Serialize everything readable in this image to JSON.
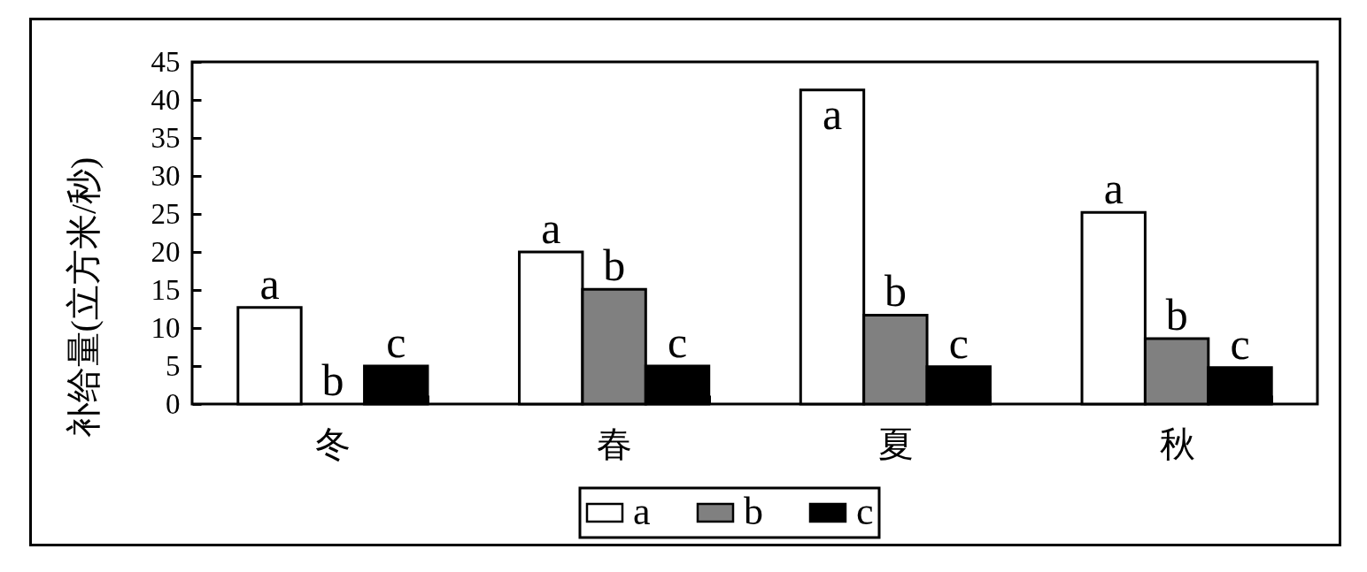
{
  "chart_data": {
    "type": "bar",
    "ylabel": "补给量(立方米/秒)",
    "categories": [
      "冬",
      "春",
      "夏",
      "秋"
    ],
    "series": [
      {
        "name": "a",
        "color": "#ffffff",
        "values": [
          12.7,
          20,
          41.3,
          25.2
        ],
        "value_labels": [
          "a",
          "a",
          "a",
          "a"
        ]
      },
      {
        "name": "b",
        "color": "#808080",
        "values": [
          0,
          15.1,
          11.7,
          8.6
        ],
        "value_labels": [
          "b",
          "b",
          "b",
          "b"
        ]
      },
      {
        "name": "c",
        "color": "#000000",
        "values": [
          5,
          5,
          4.9,
          4.8
        ],
        "value_labels": [
          "c",
          "c",
          "c",
          "c"
        ]
      }
    ],
    "ylim": [
      0,
      45
    ],
    "yticks": [
      0,
      5,
      10,
      15,
      20,
      25,
      30,
      35,
      40,
      45
    ],
    "legend": "bottom"
  }
}
